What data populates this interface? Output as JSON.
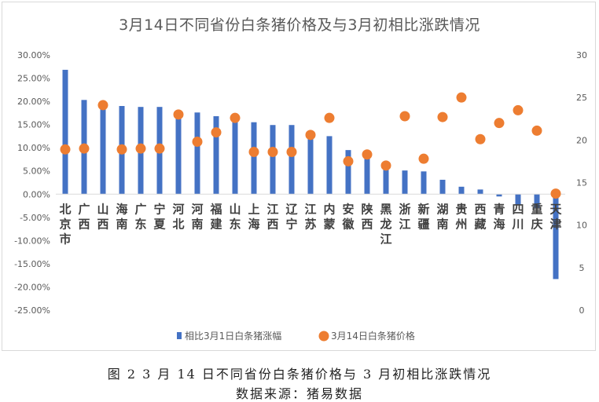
{
  "chart_data": {
    "type": "bar+scatter",
    "title": "3月14日不同省份白条猪价格及与3月初相比涨跌情况",
    "categories": [
      "北京市",
      "广西",
      "山西",
      "海南",
      "广东",
      "宁夏",
      "河北",
      "河南",
      "福建",
      "山东",
      "上海",
      "江西",
      "辽宁",
      "江苏",
      "内蒙",
      "安徽",
      "陕西",
      "黑龙江",
      "浙江",
      "新疆",
      "湖南",
      "贵州",
      "西藏",
      "青海",
      "四川",
      "重庆",
      "天津"
    ],
    "series": [
      {
        "name": "相比3月1日白条猪涨幅",
        "kind": "bar",
        "axis": "left",
        "color": "#4472C4",
        "values": [
          26.8,
          20.3,
          19.2,
          19.0,
          18.8,
          18.8,
          17.8,
          17.6,
          16.8,
          16.3,
          15.5,
          14.9,
          14.9,
          12.8,
          12.5,
          9.5,
          8.3,
          6.0,
          5.1,
          4.9,
          3.1,
          1.6,
          1.0,
          -0.5,
          -2.3,
          -3.0,
          -18.3
        ]
      },
      {
        "name": "3月14日白条猪价格",
        "kind": "scatter",
        "axis": "right",
        "color": "#ED7D31",
        "values": [
          18.9,
          19.0,
          24.1,
          18.9,
          19.0,
          19.0,
          23.0,
          19.8,
          20.9,
          22.6,
          18.6,
          18.6,
          18.6,
          20.6,
          22.6,
          17.5,
          18.3,
          17.0,
          22.8,
          17.8,
          22.7,
          25.0,
          20.1,
          22.0,
          23.5,
          21.1,
          13.7
        ]
      }
    ],
    "y_left": {
      "min": -25,
      "max": 30,
      "step": 5,
      "tick_labels": [
        "30.00%",
        "25.00%",
        "20.00%",
        "15.00%",
        "10.00%",
        "5.00%",
        "0.00%",
        "-5.00%",
        "-10.00%",
        "-15.00%",
        "-20.00%",
        "-25.00%"
      ]
    },
    "y_right": {
      "min": 0,
      "max": 30,
      "step": 5,
      "tick_labels": [
        "30",
        "25",
        "20",
        "15",
        "10",
        "5",
        "0"
      ]
    },
    "legend": [
      "相比3月1日白条猪涨幅",
      "3月14日白条猪价格"
    ],
    "legend_position": "bottom"
  },
  "caption": "图 2 3 月 14 日不同省份白条猪价格与 3 月初相比涨跌情况",
  "source": "数据来源：猪易数据"
}
